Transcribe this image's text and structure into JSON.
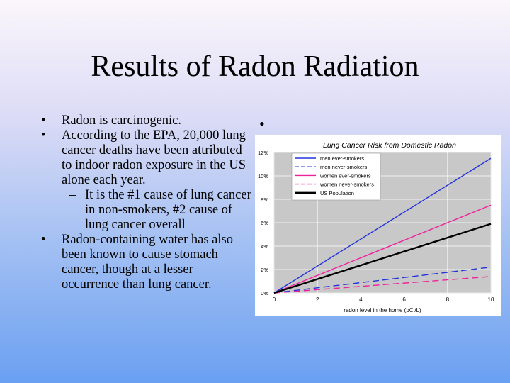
{
  "slide": {
    "title": "Results of Radon Radiation",
    "bullets": [
      {
        "marker": "•",
        "text": "Radon is carcinogenic."
      },
      {
        "marker": "•",
        "text": "According to the EPA,  20,000 lung cancer deaths have been attributed to  indoor radon exposure in    the US alone each year."
      },
      {
        "marker": "–",
        "sub": true,
        "text": "It is the #1 cause of lung cancer in non-smokers, #2 cause of lung cancer overall"
      },
      {
        "marker": "•",
        "text": "Radon-containing water  has also been known to cause stomach cancer, though at a lesser occurrence than lung cancer."
      }
    ],
    "chart_bullet": "•"
  },
  "chart_data": {
    "type": "line",
    "title": "Lung Cancer Risk from Domestic Radon",
    "xlabel": "radon level in the home (pCi/L)",
    "ylabel": "",
    "xlim": [
      0,
      10
    ],
    "ylim": [
      0,
      12
    ],
    "x_ticks": [
      "0",
      "2",
      "4",
      "6",
      "8",
      "10"
    ],
    "y_ticks": [
      "0%",
      "2%",
      "4%",
      "6%",
      "8%",
      "10%",
      "12%"
    ],
    "grid": true,
    "legend_position": "top-left",
    "series": [
      {
        "name": "men ever-smokers",
        "color": "#2233dd",
        "dash": "solid",
        "x": [
          0,
          10
        ],
        "y": [
          0,
          11.5
        ]
      },
      {
        "name": "men never-smokers",
        "color": "#2233dd",
        "dash": "dashed",
        "x": [
          0,
          10
        ],
        "y": [
          0,
          2.2
        ]
      },
      {
        "name": "women ever-smokers",
        "color": "#ee2299",
        "dash": "solid",
        "x": [
          0,
          10
        ],
        "y": [
          0,
          7.5
        ]
      },
      {
        "name": "women never-smokers",
        "color": "#ee2299",
        "dash": "dashed",
        "x": [
          0,
          10
        ],
        "y": [
          0,
          1.4
        ]
      },
      {
        "name": "US Population",
        "color": "#000000",
        "dash": "solid-thick",
        "x": [
          0,
          10
        ],
        "y": [
          0,
          5.9
        ]
      }
    ]
  }
}
